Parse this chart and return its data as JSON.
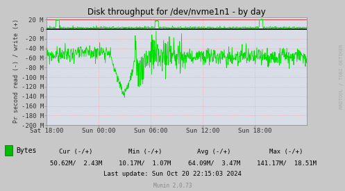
{
  "title": "Disk throughput for /dev/nvme1n1 - by day",
  "ylabel": "Pr second read (-) / write (+)",
  "background_color": "#c8c8c8",
  "plot_bg_color": "#d8dde8",
  "grid_color_h": "#ff9999",
  "grid_color_v": "#ff9999",
  "border_color": "#aaaaaa",
  "ylim": [
    -200,
    25
  ],
  "yticks": [
    20,
    0,
    -20,
    -40,
    -60,
    -80,
    -100,
    -120,
    -140,
    -160,
    -180,
    -200
  ],
  "ytick_labels": [
    "20 M",
    "0",
    "-20 M",
    "-40 M",
    "-60 M",
    "-80 M",
    "-100 M",
    "-120 M",
    "-140 M",
    "-160 M",
    "-180 M",
    "-200 M"
  ],
  "xtick_labels": [
    "Sat 18:00",
    "Sun 00:00",
    "Sun 06:00",
    "Sun 12:00",
    "Sun 18:00"
  ],
  "line_color": "#00dd00",
  "zero_line_color": "#000000",
  "upper_bound_color": "#cc0000",
  "n_points": 800,
  "rrdtool_label": "RRDTOOL / TOBI OETIKER",
  "legend_label": "Bytes",
  "legend_color": "#00bb00",
  "cur_neg": "50.62M",
  "cur_pos": "2.43M",
  "min_neg": "10.17M",
  "min_pos": "1.07M",
  "avg_neg": "64.09M",
  "avg_pos": "3.47M",
  "max_neg": "141.17M",
  "max_pos": "18.51M",
  "last_update": "Last update: Sun Oct 20 22:15:03 2024",
  "munin_version": "Munin 2.0.73"
}
